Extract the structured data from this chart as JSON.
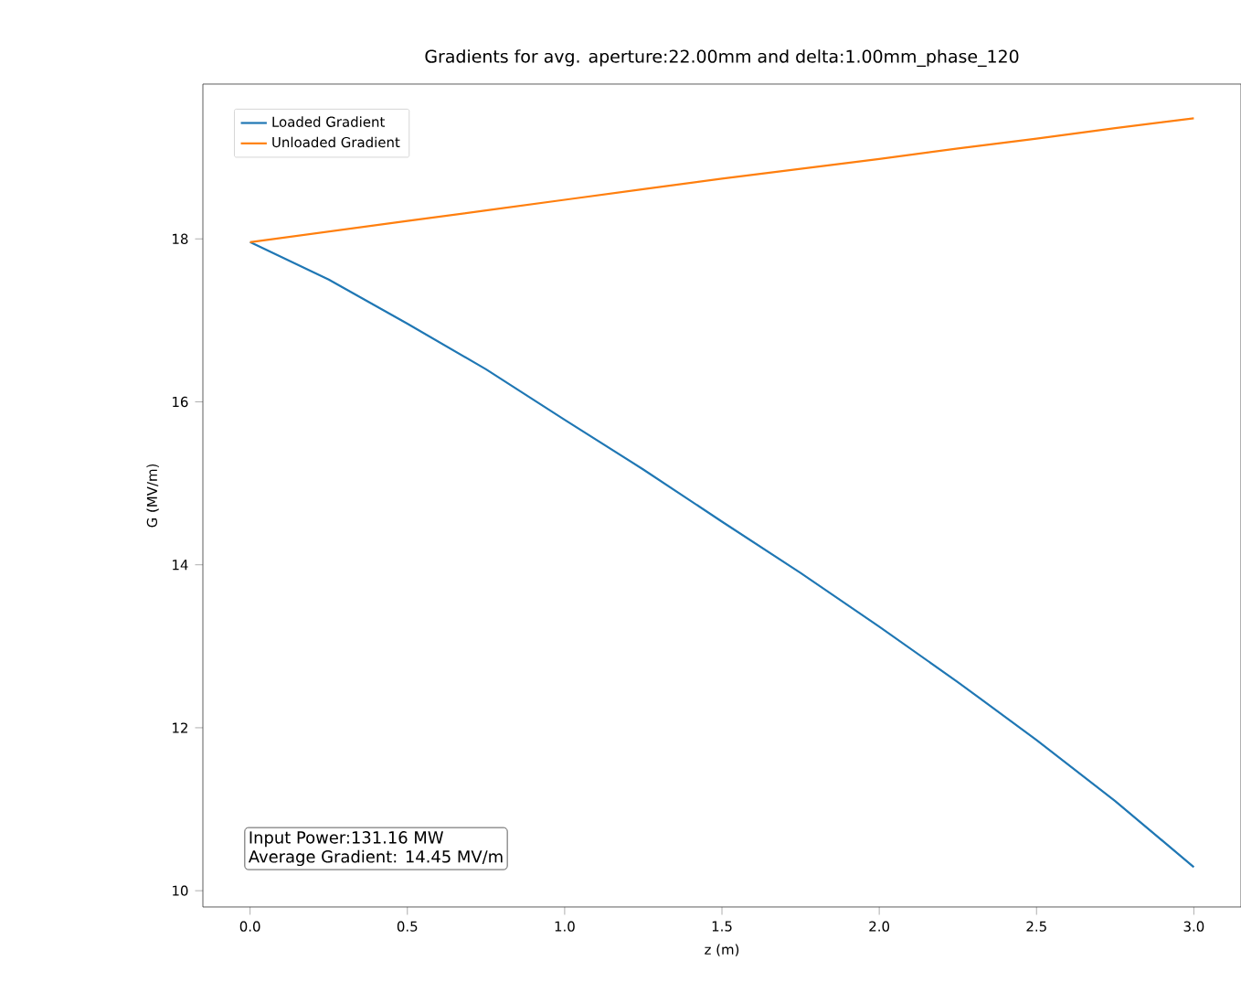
{
  "chart_data": {
    "type": "line",
    "title": "Gradients for avg. aperture:22.00mm and delta:1.00mm_phase_120",
    "xlabel": "z (m)",
    "ylabel": "G (MV/m)",
    "x": [
      0,
      0.25,
      0.5,
      0.75,
      1.0,
      1.25,
      1.5,
      1.75,
      2.0,
      2.25,
      2.5,
      2.75,
      3.0
    ],
    "series": [
      {
        "name": "Loaded Gradient",
        "color": "#1f77b4",
        "values": [
          17.96,
          17.5,
          16.96,
          16.4,
          15.78,
          15.17,
          14.53,
          13.9,
          13.24,
          12.56,
          11.85,
          11.1,
          10.29
        ]
      },
      {
        "name": "Unloaded Gradient",
        "color": "#ff7f0e",
        "values": [
          17.96,
          18.09,
          18.22,
          18.35,
          18.48,
          18.61,
          18.74,
          18.86,
          18.98,
          19.11,
          19.23,
          19.36,
          19.48
        ]
      }
    ],
    "xlim": [
      -0.15,
      3.15
    ],
    "ylim": [
      9.8,
      19.9
    ],
    "xticks": [
      {
        "value": 0,
        "label": "0.0"
      },
      0.5,
      {
        "value": 1,
        "label": "1.0"
      },
      1.5,
      {
        "value": 2,
        "label": "2.0"
      },
      2.5,
      {
        "value": 3,
        "label": "3.0"
      }
    ],
    "yticks": [
      10,
      12,
      14,
      16,
      18
    ],
    "legend": "top left",
    "grid": false,
    "marker": "none",
    "line_style": "solid",
    "annotations": [
      "Input Power:131.16 MW",
      "Average Gradient: 14.45 MV/m"
    ]
  }
}
